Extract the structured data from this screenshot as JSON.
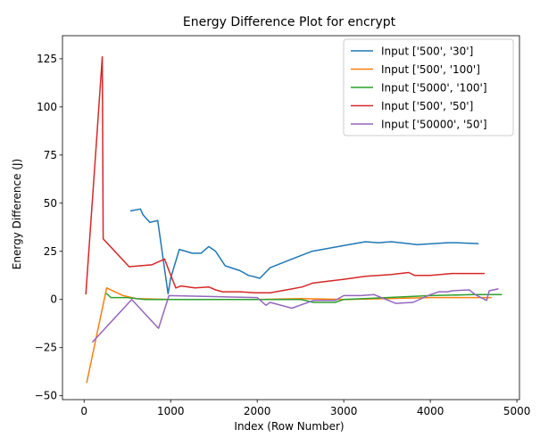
{
  "chart_data": {
    "type": "line",
    "title": "Energy Difference Plot for encrypt",
    "xlabel": "Index (Row Number)",
    "ylabel": "Energy Difference (J)",
    "xlim": [
      -250,
      5030
    ],
    "ylim": [
      -52,
      137
    ],
    "xticks": [
      0,
      1000,
      2000,
      3000,
      4000,
      5000
    ],
    "yticks": [
      -50,
      -25,
      0,
      25,
      50,
      75,
      100,
      125
    ],
    "legend_position": "top-right",
    "grid": false,
    "series": [
      {
        "name": "Input ['500', '30']",
        "color": "#1f77b4",
        "points": [
          [
            540,
            46
          ],
          [
            650,
            47
          ],
          [
            680,
            44
          ],
          [
            760,
            40
          ],
          [
            850,
            41
          ],
          [
            970,
            3
          ],
          [
            1000,
            11
          ],
          [
            1100,
            26
          ],
          [
            1250,
            24
          ],
          [
            1350,
            24
          ],
          [
            1440,
            27.5
          ],
          [
            1520,
            25
          ],
          [
            1630,
            17.5
          ],
          [
            1800,
            15
          ],
          [
            1900,
            12.5
          ],
          [
            1950,
            12
          ],
          [
            2030,
            11
          ],
          [
            2150,
            16.5
          ],
          [
            2400,
            21
          ],
          [
            2630,
            25
          ],
          [
            3000,
            28
          ],
          [
            3250,
            30
          ],
          [
            3400,
            29.5
          ],
          [
            3550,
            30
          ],
          [
            3850,
            28.5
          ],
          [
            4200,
            29.5
          ],
          [
            4300,
            29.5
          ],
          [
            4550,
            29
          ]
        ]
      },
      {
        "name": "Input ['500', '100']",
        "color": "#ff7f0e",
        "points": [
          [
            30,
            -43
          ],
          [
            260,
            6
          ],
          [
            450,
            2
          ],
          [
            600,
            0.5
          ],
          [
            1000,
            0
          ],
          [
            1500,
            0
          ],
          [
            2000,
            0
          ],
          [
            2500,
            0.5
          ],
          [
            3000,
            0
          ],
          [
            3500,
            0.5
          ],
          [
            4000,
            1
          ],
          [
            4500,
            1
          ],
          [
            4700,
            1
          ]
        ]
      },
      {
        "name": "Input ['5000', '100']",
        "color": "#2ca02c",
        "points": [
          [
            260,
            3
          ],
          [
            310,
            1
          ],
          [
            500,
            1
          ],
          [
            700,
            0
          ],
          [
            1000,
            0
          ],
          [
            1500,
            0
          ],
          [
            2000,
            0
          ],
          [
            2500,
            0
          ],
          [
            2650,
            -1.5
          ],
          [
            2900,
            -1.5
          ],
          [
            3000,
            0
          ],
          [
            3500,
            1
          ],
          [
            4000,
            2
          ],
          [
            4500,
            2.5
          ],
          [
            4820,
            2.5
          ]
        ]
      },
      {
        "name": "Input ['500', '50']",
        "color": "#d62728",
        "points": [
          [
            20,
            3
          ],
          [
            140,
            80
          ],
          [
            210,
            126
          ],
          [
            220,
            31.5
          ],
          [
            520,
            17
          ],
          [
            780,
            18
          ],
          [
            930,
            21
          ],
          [
            980,
            15
          ],
          [
            1060,
            6
          ],
          [
            1120,
            7
          ],
          [
            1280,
            6
          ],
          [
            1440,
            6.5
          ],
          [
            1520,
            5
          ],
          [
            1600,
            4
          ],
          [
            1800,
            4
          ],
          [
            1980,
            3.5
          ],
          [
            2150,
            3.5
          ],
          [
            2400,
            5.5
          ],
          [
            2520,
            6.5
          ],
          [
            2640,
            8.5
          ],
          [
            3000,
            10.5
          ],
          [
            3250,
            12
          ],
          [
            3550,
            13
          ],
          [
            3750,
            14
          ],
          [
            3820,
            12.5
          ],
          [
            4000,
            12.5
          ],
          [
            4250,
            13.5
          ],
          [
            4550,
            13.5
          ],
          [
            4620,
            13.5
          ]
        ]
      },
      {
        "name": "Input ['50000', '50']",
        "color": "#9467bd",
        "points": [
          [
            100,
            -22
          ],
          [
            550,
            0
          ],
          [
            860,
            -15
          ],
          [
            980,
            2
          ],
          [
            1500,
            1.5
          ],
          [
            2000,
            1
          ],
          [
            2100,
            -3
          ],
          [
            2150,
            -1.5
          ],
          [
            2400,
            -4.5
          ],
          [
            2650,
            -0.5
          ],
          [
            2900,
            -0.5
          ],
          [
            3000,
            2
          ],
          [
            3200,
            2
          ],
          [
            3350,
            2.5
          ],
          [
            3600,
            -2
          ],
          [
            3800,
            -1.5
          ],
          [
            4000,
            2.5
          ],
          [
            4100,
            4
          ],
          [
            4200,
            4
          ],
          [
            4250,
            4.5
          ],
          [
            4450,
            5
          ],
          [
            4520,
            2.5
          ],
          [
            4650,
            -0.5
          ],
          [
            4680,
            4.5
          ],
          [
            4780,
            5.5
          ]
        ]
      }
    ]
  }
}
